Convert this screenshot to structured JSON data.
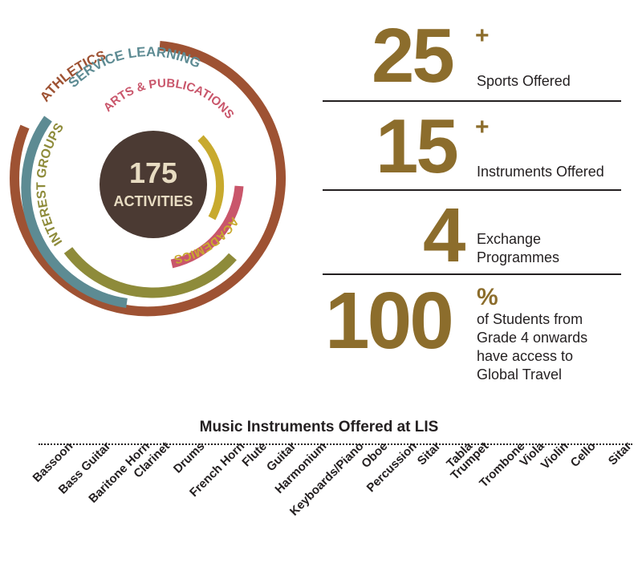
{
  "activities": {
    "count": "175",
    "label": "ACTIVITIES",
    "categories": [
      "ATHLETICS",
      "SERVICE LEARNING",
      "ARTS & PUBLICATIONS",
      "INTEREST GROUPS",
      "ACADEMICS"
    ],
    "colors": {
      "athletics": "#9e5233",
      "service_learning": "#5d8b93",
      "arts_publications": "#c9566b",
      "interest_groups": "#8e8b3a",
      "academics": "#c8aa2e",
      "center": "#4b3a33"
    }
  },
  "stats": [
    {
      "value": "25",
      "suffix": "+",
      "label": "Sports Offered"
    },
    {
      "value": "15",
      "suffix": "+",
      "label": "Instruments Offered"
    },
    {
      "value": "4",
      "suffix": "",
      "label_lines": [
        "Exchange",
        "Programmes"
      ]
    },
    {
      "value": "100",
      "suffix": "%",
      "label_lines": [
        "of Students from",
        "Grade 4 onwards",
        "have access to",
        "Global Travel"
      ]
    }
  ],
  "music": {
    "title": "Music Instruments Offered at LIS",
    "instruments": [
      "Bassoon",
      "Bass Guitar",
      "Baritone Horn",
      "Clarinet",
      "Drums",
      "French Horn",
      "Flute",
      "Guitar",
      "Harmonium",
      "Keyboards/Piano",
      "Oboe",
      "Percussion",
      "Sitar",
      "Tabla",
      "Trumpet",
      "Trombone",
      "Viola",
      "Violin",
      "Cello",
      "Sitar"
    ]
  }
}
